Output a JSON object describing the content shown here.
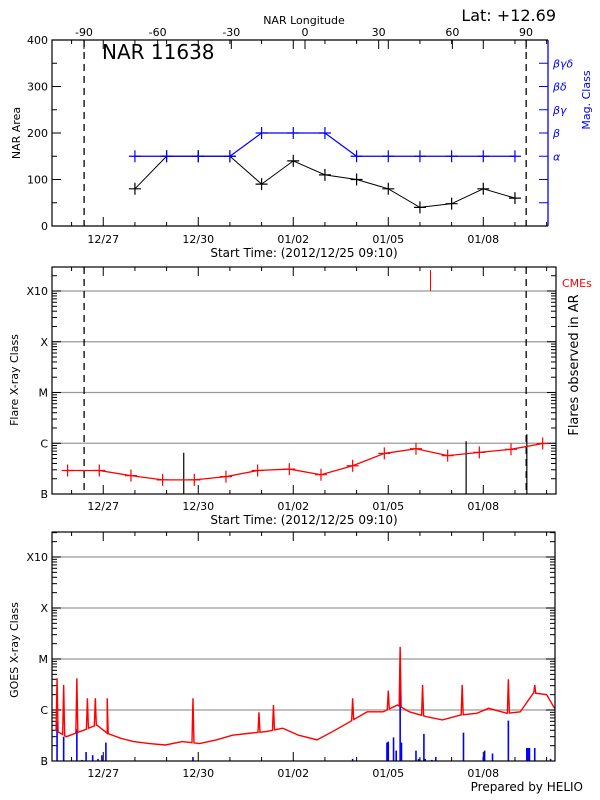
{
  "header": {
    "lat_label": "Lat: +12.69"
  },
  "footer": {
    "credit": "Prepared by HELIO"
  },
  "colors": {
    "area": "#000000",
    "mag_class": "#0000ff",
    "flare_curve": "#ff0000",
    "cme": "#ff0000",
    "goes_flux": "#ff0000",
    "goes_events": "#0000ff",
    "grid": "#999999",
    "ar_flares": "#000000"
  },
  "chart_data": [
    {
      "type": "line",
      "title": "NAR 11638",
      "top_axis_label": "NAR Longitude",
      "top_axis_ticks": [
        -90,
        -60,
        -30,
        0,
        30,
        60,
        90
      ],
      "xlabel": "Start Time: (2012/12/25 09:10)",
      "ylabel": "NAR Area",
      "y2label": "Mag. Class",
      "xlim": [
        "2012-12-25 09:10",
        "2013-01-10 01:00"
      ],
      "ylim": [
        0,
        400
      ],
      "yticks": [
        0,
        100,
        200,
        300,
        400
      ],
      "xtick_labels": [
        "12/27",
        "12/30",
        "01/02",
        "01/05",
        "01/08"
      ],
      "limb_times": [
        "2012-12-26 09:30",
        "2013-01-09 08:30"
      ],
      "x": [
        "2012-12-28 00:00",
        "2012-12-29 00:00",
        "2012-12-30 00:00",
        "2012-12-31 00:00",
        "2013-01-01 00:00",
        "2013-01-02 00:00",
        "2013-01-03 00:00",
        "2013-01-04 00:00",
        "2013-01-05 00:00",
        "2013-01-06 00:00",
        "2013-01-07 00:00",
        "2013-01-08 00:00",
        "2013-01-09 00:00"
      ],
      "series": [
        {
          "key": "area",
          "values": [
            80,
            150,
            150,
            150,
            90,
            140,
            110,
            100,
            80,
            40,
            48,
            80,
            60
          ]
        },
        {
          "key": "mag_class",
          "values": [
            "α",
            "α",
            "α",
            "α",
            "β",
            "β",
            "β",
            "α",
            "α",
            "α",
            "α",
            "α",
            "α"
          ]
        }
      ],
      "mag_class_levels": [
        {
          "label": "",
          "level": 50
        },
        {
          "label": "",
          "level": 100
        },
        {
          "label": "α",
          "level": 150
        },
        {
          "label": "β",
          "level": 200
        },
        {
          "label": "βγ",
          "level": 250
        },
        {
          "label": "βδ",
          "level": 300
        },
        {
          "label": "βγδ",
          "level": 350
        }
      ],
      "grid": false
    },
    {
      "type": "line",
      "xlabel": "Start Time: (2012/12/25 09:10)",
      "ylabel": "Flare X-ray Class",
      "y2label": "Flares observed in AR",
      "cme_label": "CMEs",
      "yscale": "log",
      "ylim": [
        1e-07,
        0.003
      ],
      "ytick_labels": [
        {
          "label": "B",
          "value": 1e-07
        },
        {
          "label": "C",
          "value": 1e-06
        },
        {
          "label": "M",
          "value": 1e-05
        },
        {
          "label": "X",
          "value": 0.0001
        },
        {
          "label": "X10",
          "value": 0.001
        }
      ],
      "xlim": [
        "2012-12-25 09:10",
        "2013-01-10 07:00"
      ],
      "xtick_labels": [
        "12/27",
        "12/30",
        "01/02",
        "01/05",
        "01/08"
      ],
      "limb_times": [
        "2012-12-26 09:30",
        "2013-01-09 08:30"
      ],
      "grid": true,
      "x": [
        "2012-12-25 21:00",
        "2012-12-26 21:00",
        "2012-12-27 21:00",
        "2012-12-28 21:00",
        "2012-12-29 21:00",
        "2012-12-30 21:00",
        "2012-12-31 21:00",
        "2013-01-01 21:00",
        "2013-01-02 21:00",
        "2013-01-03 21:00",
        "2013-01-04 21:00",
        "2013-01-05 21:00",
        "2013-01-06 21:00",
        "2013-01-07 21:00",
        "2013-01-08 21:00",
        "2013-01-09 21:00"
      ],
      "values": [
        2.9e-07,
        2.9e-07,
        2.3e-07,
        1.9e-07,
        1.9e-07,
        2.2e-07,
        2.9e-07,
        3.1e-07,
        2.4e-07,
        3.6e-07,
        6.3e-07,
        7.8e-07,
        5.7e-07,
        6.6e-07,
        7.6e-07,
        9.9e-07
      ],
      "ar_flares": [
        {
          "time": "2012-12-29 13:00",
          "value": 6.5e-07
        },
        {
          "time": "2013-01-07 11:00",
          "value": 1.1e-06
        },
        {
          "time": "2013-01-09 09:00",
          "value": 1.5e-06
        }
      ],
      "cmes": [
        "2013-01-06 08:00"
      ]
    },
    {
      "type": "line",
      "ylabel": "GOES X-ray Class",
      "yscale": "log",
      "ylim": [
        1e-07,
        0.003
      ],
      "ytick_labels": [
        {
          "label": "B",
          "value": 1e-07
        },
        {
          "label": "C",
          "value": 1e-06
        },
        {
          "label": "M",
          "value": 1e-05
        },
        {
          "label": "X",
          "value": 0.0001
        },
        {
          "label": "X10",
          "value": 0.001
        }
      ],
      "xlim": [
        "2012-12-25 09:10",
        "2013-01-10 07:00"
      ],
      "xtick_labels": [
        "12/27",
        "12/30",
        "01/02",
        "01/05",
        "01/08"
      ],
      "grid": true,
      "flux": [
        [
          "2012-12-25 09:00",
          4.4e-07
        ],
        [
          "2012-12-25 20:00",
          3e-07
        ],
        [
          "2012-12-26 09:00",
          4e-07
        ],
        [
          "2012-12-26 19:00",
          5.1e-07
        ],
        [
          "2012-12-27 03:00",
          3.5e-07
        ],
        [
          "2012-12-27 13:00",
          2.8e-07
        ],
        [
          "2012-12-27 23:00",
          2.4e-07
        ],
        [
          "2012-12-28 11:00",
          2.2e-07
        ],
        [
          "2012-12-28 23:00",
          2.06e-07
        ],
        [
          "2012-12-29 12:00",
          2.4e-07
        ],
        [
          "2012-12-30 01:00",
          2.2e-07
        ],
        [
          "2012-12-30 14:00",
          2.6e-07
        ],
        [
          "2012-12-31 02:00",
          3.2e-07
        ],
        [
          "2012-12-31 15:00",
          3.5e-07
        ],
        [
          "2013-01-01 04:00",
          3.8e-07
        ],
        [
          "2013-01-01 16:00",
          4.4e-07
        ],
        [
          "2013-01-02 04:00",
          3.2e-07
        ],
        [
          "2013-01-02 18:00",
          2.6e-07
        ],
        [
          "2013-01-03 06:00",
          3.8e-07
        ],
        [
          "2013-01-03 19:00",
          5.9e-07
        ],
        [
          "2013-01-04 08:00",
          9.2e-07
        ],
        [
          "2013-01-04 20:00",
          9.2e-07
        ],
        [
          "2013-01-05 07:00",
          1.25e-06
        ],
        [
          "2013-01-05 16:00",
          9.2e-07
        ],
        [
          "2013-01-06 05:00",
          7.4e-07
        ],
        [
          "2013-01-06 17:00",
          6.4e-07
        ],
        [
          "2013-01-07 07:00",
          8e-07
        ],
        [
          "2013-01-07 19:00",
          8.6e-07
        ],
        [
          "2013-01-08 04:00",
          1.08e-06
        ],
        [
          "2013-01-08 18:00",
          8.6e-07
        ],
        [
          "2013-01-09 04:00",
          9.2e-07
        ],
        [
          "2013-01-09 14:00",
          2.16e-06
        ],
        [
          "2013-01-10 00:00",
          2e-06
        ],
        [
          "2013-01-10 06:00",
          1.08e-06
        ]
      ],
      "flux_peaks": [
        [
          "2012-12-25 13:00",
          4.2e-06
        ],
        [
          "2012-12-25 18:00",
          3.1e-06
        ],
        [
          "2012-12-26 04:00",
          4.2e-06
        ],
        [
          "2012-12-26 12:00",
          1.7e-06
        ],
        [
          "2012-12-26 18:00",
          1.7e-06
        ],
        [
          "2012-12-27 03:00",
          1.7e-06
        ],
        [
          "2012-12-29 20:00",
          1.7e-06
        ],
        [
          "2012-12-31 22:00",
          9e-07
        ],
        [
          "2013-01-01 09:00",
          1.25e-06
        ],
        [
          "2013-01-03 21:00",
          1.7e-06
        ],
        [
          "2013-01-05 00:00",
          2.4e-06
        ],
        [
          "2013-01-05 09:00",
          1.73e-05
        ],
        [
          "2013-01-06 02:00",
          3.1e-06
        ],
        [
          "2013-01-07 08:00",
          3.1e-06
        ],
        [
          "2013-01-08 19:00",
          4e-06
        ],
        [
          "2013-01-09 15:00",
          3.1e-06
        ]
      ],
      "events": [
        [
          "2012-12-25 13:00",
          5.9e-07
        ],
        [
          "2012-12-25 18:00",
          3e-07
        ],
        [
          "2012-12-26 04:00",
          4.2e-07
        ],
        [
          "2012-12-26 08:00",
          1.05e-07
        ],
        [
          "2012-12-26 11:00",
          1.5e-07
        ],
        [
          "2012-12-26 16:00",
          1.3e-07
        ],
        [
          "2012-12-26 20:00",
          1.1e-07
        ],
        [
          "2012-12-26 23:00",
          1.3e-07
        ],
        [
          "2012-12-27 02:00",
          2.3e-07
        ],
        [
          "2012-12-29 20:00",
          1.2e-07
        ],
        [
          "2013-01-03 21:00",
          1.1e-07
        ],
        [
          "2013-01-04 23:00",
          2.3e-07
        ],
        [
          "2013-01-05 00:00",
          2.4e-07
        ],
        [
          "2013-01-05 04:00",
          2.9e-07
        ],
        [
          "2013-01-05 06:00",
          1.6e-07
        ],
        [
          "2013-01-05 09:00",
          7e-06
        ],
        [
          "2013-01-05 10:00",
          2.3e-07
        ],
        [
          "2013-01-05 21:00",
          1.6e-07
        ],
        [
          "2013-01-05 23:00",
          1.1e-07
        ],
        [
          "2013-01-06 03:00",
          3.4e-07
        ],
        [
          "2013-01-06 04:00",
          1.1e-07
        ],
        [
          "2013-01-06 09:00",
          1.05e-07
        ],
        [
          "2013-01-06 12:00",
          1.2e-07
        ],
        [
          "2013-01-07 09:00",
          3.6e-07
        ],
        [
          "2013-01-08 00:00",
          1.2e-07
        ],
        [
          "2013-01-08 01:00",
          1.6e-07
        ],
        [
          "2013-01-08 07:00",
          1.4e-07
        ],
        [
          "2013-01-08 19:00",
          6.2e-07
        ],
        [
          "2013-01-09 09:00",
          1.8e-07
        ],
        [
          "2013-01-09 10:00",
          1.8e-07
        ],
        [
          "2013-01-09 11:00",
          1.8e-07
        ],
        [
          "2013-01-09 15:00",
          1.8e-07
        ],
        [
          "2013-01-10 03:00",
          1.1e-07
        ]
      ]
    }
  ]
}
